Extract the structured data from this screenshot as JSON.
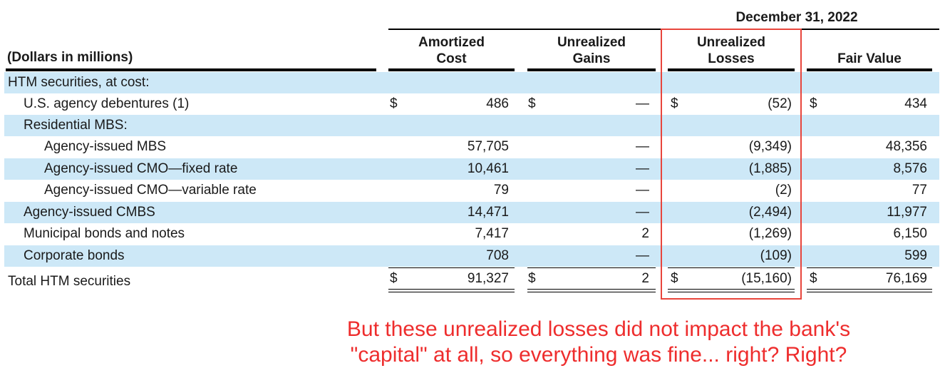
{
  "period_header": "December 31, 2022",
  "units_label": "(Dollars in millions)",
  "columns": {
    "amortized_cost": [
      "Amortized",
      "Cost"
    ],
    "unrealized_gains": [
      "Unrealized",
      "Gains"
    ],
    "unrealized_losses": [
      "Unrealized",
      "Losses"
    ],
    "fair_value": [
      "Fair Value"
    ]
  },
  "currency_symbol": "$",
  "section_label": "HTM securities, at cost:",
  "rows": [
    {
      "label": "U.S. agency debentures (1)",
      "amortized_cost": "486",
      "unrealized_gains": "—",
      "unrealized_losses": "(52)",
      "fair_value": "434"
    },
    {
      "label": "Residential MBS:"
    },
    {
      "label": "Agency-issued MBS",
      "amortized_cost": "57,705",
      "unrealized_gains": "—",
      "unrealized_losses": "(9,349)",
      "fair_value": "48,356"
    },
    {
      "label": "Agency-issued CMO—fixed rate",
      "amortized_cost": "10,461",
      "unrealized_gains": "—",
      "unrealized_losses": "(1,885)",
      "fair_value": "8,576"
    },
    {
      "label": "Agency-issued CMO—variable rate",
      "amortized_cost": "79",
      "unrealized_gains": "—",
      "unrealized_losses": "(2)",
      "fair_value": "77"
    },
    {
      "label": "Agency-issued CMBS",
      "amortized_cost": "14,471",
      "unrealized_gains": "—",
      "unrealized_losses": "(2,494)",
      "fair_value": "11,977"
    },
    {
      "label": "Municipal bonds and notes",
      "amortized_cost": "7,417",
      "unrealized_gains": "2",
      "unrealized_losses": "(1,269)",
      "fair_value": "6,150"
    },
    {
      "label": "Corporate bonds",
      "amortized_cost": "708",
      "unrealized_gains": "—",
      "unrealized_losses": "(109)",
      "fair_value": "599"
    }
  ],
  "total": {
    "label": "Total HTM securities",
    "amortized_cost": "91,327",
    "unrealized_gains": "2",
    "unrealized_losses": "(15,160)",
    "fair_value": "76,169"
  },
  "annotation": [
    "But these unrealized losses did not impact the bank's",
    "\"capital\" at all, so everything was fine... right? Right?"
  ],
  "colors": {
    "row_shade": "#cde8f7",
    "highlight": "#e8453c",
    "annotation": "#ee2d2d"
  }
}
